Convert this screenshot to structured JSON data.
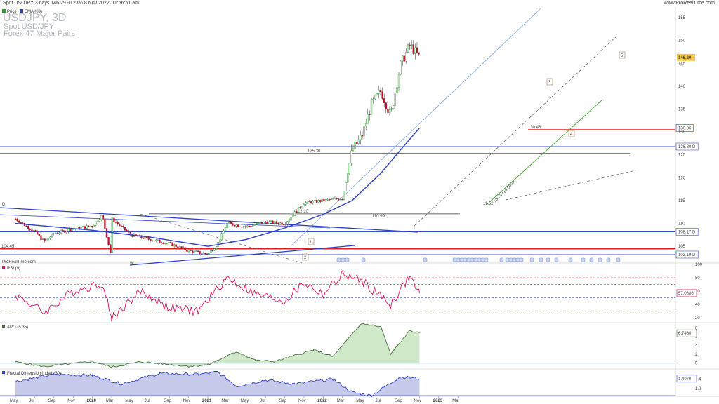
{
  "header": {
    "left_text": "Spot USDJPY 3 days 146.29 -0.23% 8 Nov 2022, 11:56:51 am",
    "right_text": "www.ProRealTime.com"
  },
  "legend": {
    "price": "Price",
    "ema": "EMA (89)"
  },
  "title": {
    "symbol": "USDJPY, 3D",
    "name": "Spot USD/JPY",
    "group": "Forex 47 Major Pairs"
  },
  "watermark": "ProRealTime.com",
  "colors": {
    "bull": "#2f9e2f",
    "bear": "#c0102a",
    "ema": "#2b40c8",
    "trend": "#2b40c8",
    "support": "#e02020",
    "rsi": "#e0105a",
    "apo_fill": "#cfe8c8"
  },
  "chart_data": [
    {
      "type": "candlestick",
      "title": "Spot USD/JPY",
      "x_ticks": [
        "May",
        "Jul",
        "Sep",
        "Nov",
        "2020",
        "Mar",
        "May",
        "Jul",
        "Sep",
        "Nov",
        "2021",
        "Mar",
        "May",
        "Jul",
        "Sep",
        "Nov",
        "2022",
        "Mar",
        "May",
        "Jul",
        "Sep",
        "Nov",
        "2023",
        "Mar"
      ],
      "y_ticks": [
        105,
        110,
        115,
        120,
        125,
        130,
        135,
        140,
        145,
        150,
        155
      ],
      "ylim": [
        101.5,
        157
      ],
      "last_price": "146.29",
      "series": [
        {
          "name": "Price",
          "close_path": [
            [
              "2019-05",
              111.0
            ],
            [
              "2019-07",
              108.2
            ],
            [
              "2019-08",
              106.0
            ],
            [
              "2019-09",
              107.8
            ],
            [
              "2019-11",
              108.8
            ],
            [
              "2020-01",
              109.5
            ],
            [
              "2020-02",
              111.8
            ],
            [
              "2020-03",
              102.5
            ],
            [
              "2020-03",
              111.0
            ],
            [
              "2020-05",
              107.5
            ],
            [
              "2020-07",
              106.5
            ],
            [
              "2020-09",
              105.6
            ],
            [
              "2020-11",
              104.0
            ],
            [
              "2021-01",
              103.3
            ],
            [
              "2021-02",
              105.5
            ],
            [
              "2021-03",
              110.0
            ],
            [
              "2021-05",
              109.3
            ],
            [
              "2021-07",
              110.3
            ],
            [
              "2021-09",
              110.0
            ],
            [
              "2021-11",
              114.5
            ],
            [
              "2022-01",
              115.0
            ],
            [
              "2022-03",
              115.5
            ],
            [
              "2022-04",
              126.0
            ],
            [
              "2022-05",
              129.0
            ],
            [
              "2022-06",
              136.0
            ],
            [
              "2022-07",
              139.0
            ],
            [
              "2022-08",
              133.5
            ],
            [
              "2022-09",
              144.5
            ],
            [
              "2022-10",
              149.0
            ],
            [
              "2022-11",
              146.29
            ]
          ]
        },
        {
          "name": "EMA (89)",
          "path": [
            [
              "2019-05",
              110.0
            ],
            [
              "2020-01",
              108.5
            ],
            [
              "2020-07",
              107.0
            ],
            [
              "2021-01",
              105.0
            ],
            [
              "2021-05",
              106.5
            ],
            [
              "2021-09",
              109.0
            ],
            [
              "2022-01",
              112.0
            ],
            [
              "2022-04",
              115.0
            ],
            [
              "2022-07",
              121.0
            ],
            [
              "2022-09",
              126.0
            ],
            [
              "2022-11",
              130.86
            ]
          ]
        }
      ],
      "price_labels": [
        {
          "text": "155",
          "y": 155
        },
        {
          "text": "150",
          "y": 150
        },
        {
          "text": "146.29",
          "y": 146.29
        },
        {
          "text": "145",
          "y": 145
        },
        {
          "text": "140",
          "y": 140
        },
        {
          "text": "135",
          "y": 135
        },
        {
          "text": "130.86",
          "y": 130.86
        },
        {
          "text": "130",
          "y": 130
        },
        {
          "text": "126.80 D",
          "y": 126.8
        },
        {
          "text": "125",
          "y": 125
        },
        {
          "text": "120",
          "y": 120
        },
        {
          "text": "115",
          "y": 115
        },
        {
          "text": "110",
          "y": 110
        },
        {
          "text": "108.17 D",
          "y": 108.17
        },
        {
          "text": "105",
          "y": 105
        },
        {
          "text": "103.19 D",
          "y": 103.19
        }
      ],
      "levels": [
        {
          "value": 126.8,
          "label": "126.80 D"
        },
        {
          "value": 108.17,
          "label": "108.17 D"
        },
        {
          "value": 103.19,
          "label": "103.19 D"
        },
        {
          "value": 125.3,
          "label": "125.30"
        },
        {
          "value": 112.1,
          "label": "112.10"
        },
        {
          "value": 110.99,
          "label": "110.99"
        },
        {
          "value": 104.45,
          "label": "104.45"
        },
        {
          "value": 130.48,
          "label": "130.48"
        }
      ],
      "annotations": [
        "D",
        "W",
        "1",
        "2",
        "3",
        "4",
        "5",
        "11.52",
        "16.73 (14.58%)"
      ]
    },
    {
      "type": "line",
      "title": "RSI (9)",
      "y_ticks": [
        20,
        40,
        60,
        80,
        100
      ],
      "ylim": [
        15,
        100
      ],
      "levels": [
        80,
        70,
        50,
        30
      ],
      "last": "57.0886",
      "series": [
        {
          "name": "RSI (9)",
          "path": [
            [
              "2019-05",
              55
            ],
            [
              "2019-08",
              28
            ],
            [
              "2019-11",
              60
            ],
            [
              "2020-02",
              72
            ],
            [
              "2020-03",
              20
            ],
            [
              "2020-06",
              60
            ],
            [
              "2020-09",
              35
            ],
            [
              "2020-12",
              30
            ],
            [
              "2021-03",
              80
            ],
            [
              "2021-06",
              55
            ],
            [
              "2021-09",
              45
            ],
            [
              "2021-11",
              72
            ],
            [
              "2022-01",
              55
            ],
            [
              "2022-03",
              85
            ],
            [
              "2022-05",
              75
            ],
            [
              "2022-08",
              40
            ],
            [
              "2022-10",
              82
            ],
            [
              "2022-11",
              57.09
            ]
          ]
        }
      ]
    },
    {
      "type": "area",
      "title": "APO (5 35)",
      "y_ticks": [
        0,
        2,
        4,
        6,
        8
      ],
      "ylim": [
        -1,
        9
      ],
      "last": "6.7460",
      "series": [
        {
          "name": "APO (5 35)",
          "path": [
            [
              "2019-05",
              0.3
            ],
            [
              "2019-08",
              -0.8
            ],
            [
              "2020-01",
              0.4
            ],
            [
              "2020-03",
              -0.9
            ],
            [
              "2020-06",
              0.3
            ],
            [
              "2020-11",
              -0.7
            ],
            [
              "2021-01",
              -0.4
            ],
            [
              "2021-04",
              2.6
            ],
            [
              "2021-06",
              0.6
            ],
            [
              "2021-08",
              0.4
            ],
            [
              "2021-12",
              3.0
            ],
            [
              "2022-02",
              1.5
            ],
            [
              "2022-05",
              9.0
            ],
            [
              "2022-07",
              8.2
            ],
            [
              "2022-08",
              2.0
            ],
            [
              "2022-10",
              7.4
            ],
            [
              "2022-11",
              6.75
            ]
          ]
        }
      ]
    },
    {
      "type": "area",
      "title": "Fractal Dimension Index (30)",
      "y_ticks": [
        1.2,
        1.4
      ],
      "ylim": [
        1.05,
        1.6
      ],
      "last": "1.4070",
      "series": [
        {
          "name": "Fractal Dimension Index (30)",
          "path": [
            [
              "2019-05",
              1.35
            ],
            [
              "2019-09",
              1.5
            ],
            [
              "2020-01",
              1.48
            ],
            [
              "2020-04",
              1.3
            ],
            [
              "2020-08",
              1.52
            ],
            [
              "2020-12",
              1.5
            ],
            [
              "2021-02",
              1.55
            ],
            [
              "2021-04",
              1.25
            ],
            [
              "2021-07",
              1.38
            ],
            [
              "2021-10",
              1.3
            ],
            [
              "2022-02",
              1.4
            ],
            [
              "2022-04",
              1.12
            ],
            [
              "2022-06",
              1.05
            ],
            [
              "2022-09",
              1.45
            ],
            [
              "2022-11",
              1.41
            ]
          ]
        }
      ]
    }
  ]
}
